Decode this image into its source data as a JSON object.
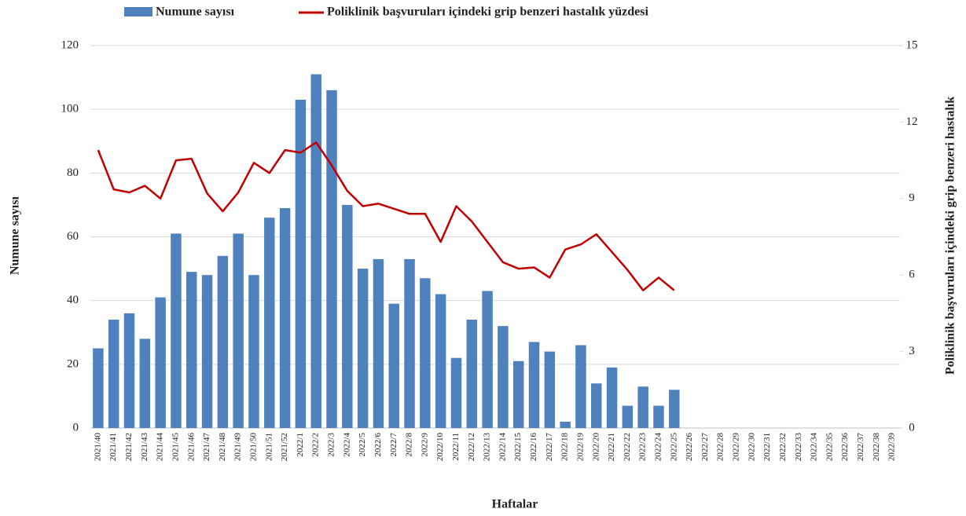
{
  "chart_data": {
    "type": "bar",
    "x_label": "Haftalar",
    "y_label": "Numune sayısı",
    "y2_label": "Poliklinik başvuruları içindeki grip benzeri hastalık",
    "categories": [
      "2021/40",
      "2021/41",
      "2021/42",
      "2021/43",
      "2021/44",
      "2021/45",
      "2021/46",
      "2021/47",
      "2021/48",
      "2021/49",
      "2021/50",
      "2021/51",
      "2021/52",
      "2022/1",
      "2022/2",
      "2022/3",
      "2022/4",
      "2022/5",
      "2022/6",
      "2022/7",
      "2022/8",
      "2022/9",
      "2022/10",
      "2022/11",
      "2022/12",
      "2022/13",
      "2022/14",
      "2022/15",
      "2022/16",
      "2022/17",
      "2022/18",
      "2022/19",
      "2022/20",
      "2022/21",
      "2022/22",
      "2022/23",
      "2022/24",
      "2022/25",
      "2022/26",
      "2022/27",
      "2022/28",
      "2022/29",
      "2022/30",
      "2022/31",
      "2022/32",
      "2022/33",
      "2022/34",
      "2022/35",
      "2022/36",
      "2022/37",
      "2022/38",
      "2022/39"
    ],
    "series": [
      {
        "name": "Numune sayısı",
        "type": "bar",
        "color": "#4f81bd",
        "values": [
          25,
          34,
          36,
          28,
          41,
          61,
          49,
          48,
          54,
          61,
          48,
          66,
          69,
          103,
          111,
          106,
          70,
          50,
          53,
          39,
          53,
          47,
          42,
          22,
          34,
          43,
          32,
          21,
          27,
          24,
          2,
          26,
          14,
          19,
          7,
          13,
          7,
          12,
          null,
          null,
          null,
          null,
          null,
          null,
          null,
          null,
          null,
          null,
          null,
          null,
          null,
          null
        ]
      },
      {
        "name": "Poliklinik başvuruları içindeki grip benzeri hastalık yüzdesi",
        "type": "line",
        "axis": "y2",
        "color": "#c00000",
        "values": [
          10.9,
          9.36,
          9.24,
          9.5,
          9.0,
          10.5,
          10.56,
          9.2,
          8.5,
          9.24,
          10.4,
          10.0,
          10.9,
          10.8,
          11.2,
          10.3,
          9.3,
          8.7,
          8.8,
          8.6,
          8.4,
          8.4,
          7.3,
          8.7,
          8.1,
          7.3,
          6.5,
          6.25,
          6.3,
          5.9,
          7.0,
          7.2,
          7.6,
          6.9,
          6.2,
          5.4,
          5.9,
          5.4,
          null,
          null,
          null,
          null,
          null,
          null,
          null,
          null,
          null,
          null,
          null,
          null,
          null,
          null
        ]
      }
    ],
    "ylim": [
      0,
      120
    ],
    "yticks": [
      0,
      20,
      40,
      60,
      80,
      100,
      120
    ],
    "y2lim": [
      0,
      15
    ],
    "y2ticks": [
      0,
      3,
      6,
      9,
      12,
      15
    ],
    "grid": true,
    "legend": "top"
  }
}
